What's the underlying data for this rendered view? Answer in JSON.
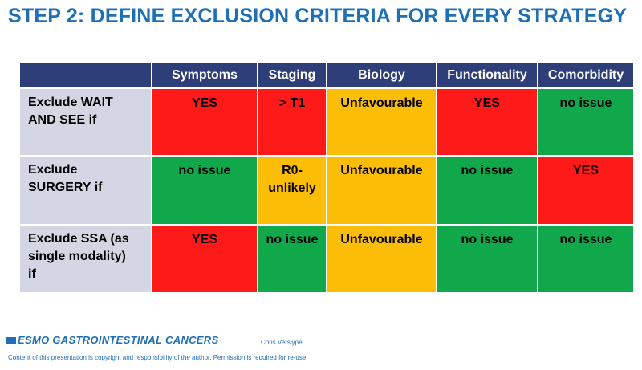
{
  "title": "STEP 2: DEFINE EXCLUSION CRITERIA FOR EVERY STRATEGY",
  "colors": {
    "title": "#1f6fb5",
    "header_bg": "#2e3e78",
    "row_label_bg": "#d4d7e3",
    "red": "#ff1a1a",
    "green": "#10a84a",
    "amber": "#fbbd05"
  },
  "table": {
    "headers": [
      "Symptoms",
      "Staging",
      "Biology",
      "Functionality",
      "Comorbidity"
    ],
    "rows": [
      {
        "label": "Exclude WAIT\nAND SEE  if",
        "cells": [
          {
            "text": "YES",
            "color": "red"
          },
          {
            "text": "> T1",
            "color": "red"
          },
          {
            "text": "Unfavourable",
            "color": "amber"
          },
          {
            "text": "YES",
            "color": "red"
          },
          {
            "text": "no issue",
            "color": "green"
          }
        ]
      },
      {
        "label": "Exclude\nSURGERY if",
        "cells": [
          {
            "text": "no issue",
            "color": "green"
          },
          {
            "text": "R0-\nunlikely",
            "color": "amber"
          },
          {
            "text": "Unfavourable",
            "color": "amber"
          },
          {
            "text": "no issue",
            "color": "green"
          },
          {
            "text": "YES",
            "color": "red"
          }
        ]
      },
      {
        "label": "Exclude SSA (as\nsingle modality)\n        if",
        "cells": [
          {
            "text": "YES",
            "color": "red"
          },
          {
            "text": "no issue",
            "color": "green"
          },
          {
            "text": "Unfavourable",
            "color": "amber"
          },
          {
            "text": "no issue",
            "color": "green"
          },
          {
            "text": "no issue",
            "color": "green"
          }
        ]
      }
    ]
  },
  "footer": {
    "logo": "ESMO GASTROINTESTINAL CANCERS",
    "author": "Chris Verslype",
    "copyright": "Content of this presentation is copyright and responsibility of the author. Permission is required for re-use."
  }
}
